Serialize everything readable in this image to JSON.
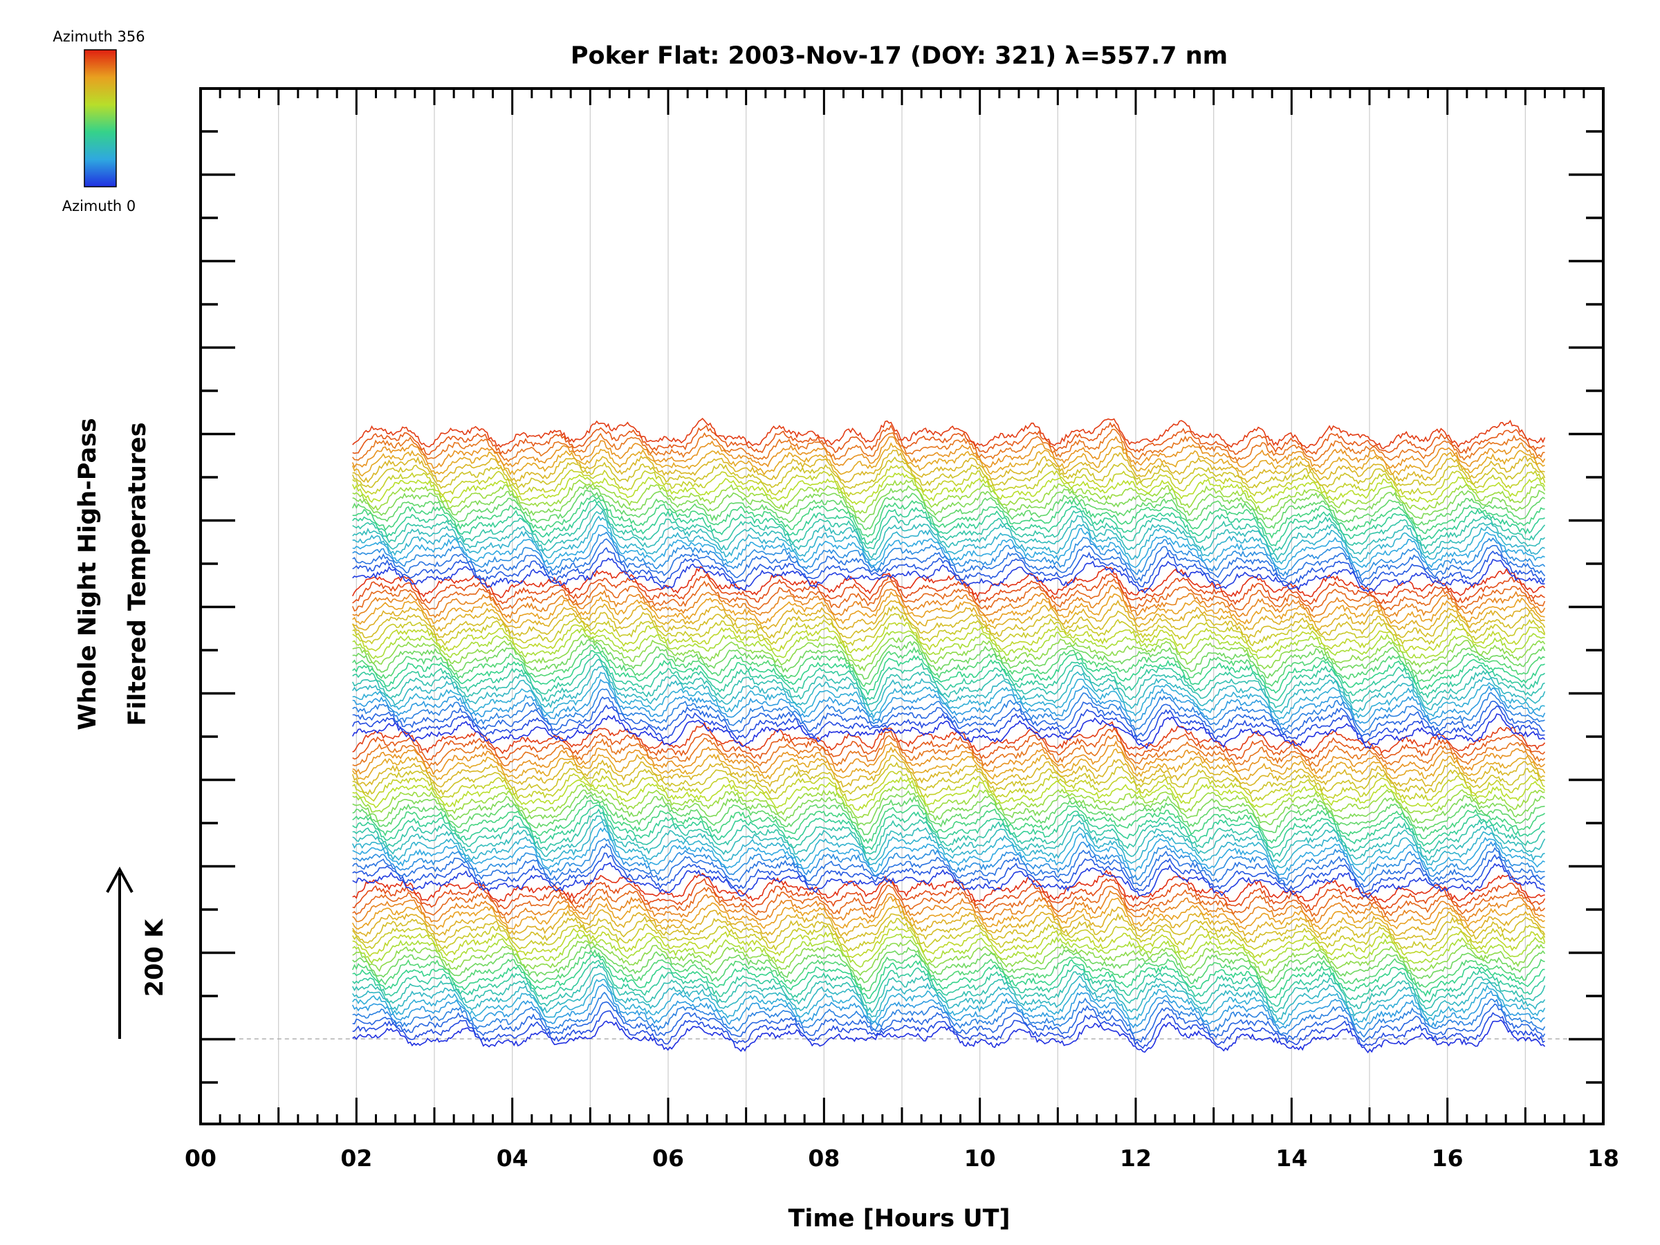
{
  "chart_data": {
    "type": "line",
    "title": "Poker Flat: 2003-Nov-17 (DOY: 321) λ=557.7 nm",
    "xlabel": "Time [Hours UT]",
    "ylabel_line1": "Whole Night High-Pass",
    "ylabel_line2": "Filtered Temperatures",
    "scale_label": "200 K",
    "xlim": [
      0,
      18
    ],
    "x_ticks": [
      "00",
      "02",
      "04",
      "06",
      "08",
      "10",
      "12",
      "14",
      "16",
      "18"
    ],
    "x_tick_values": [
      0,
      2,
      4,
      6,
      8,
      10,
      12,
      14,
      16,
      18
    ],
    "data_time_range": [
      1.95,
      17.25
    ],
    "grid": "vertical",
    "colorbar": {
      "top_label": "Azimuth 356",
      "bottom_label": "Azimuth 0",
      "colormap": "rainbow",
      "colors": [
        "#1f2fe0",
        "#2fa8e0",
        "#35d28a",
        "#b8de2a",
        "#e8a020",
        "#e02010"
      ]
    },
    "series_count": 90,
    "common_features_hours": [
      2.7,
      4.45,
      4.9,
      5.15,
      6.4,
      8.0,
      8.6,
      8.85,
      9.15,
      11.3,
      11.7,
      12.0,
      12.4,
      13.8,
      14.5,
      14.9,
      15.75,
      16.6
    ]
  }
}
